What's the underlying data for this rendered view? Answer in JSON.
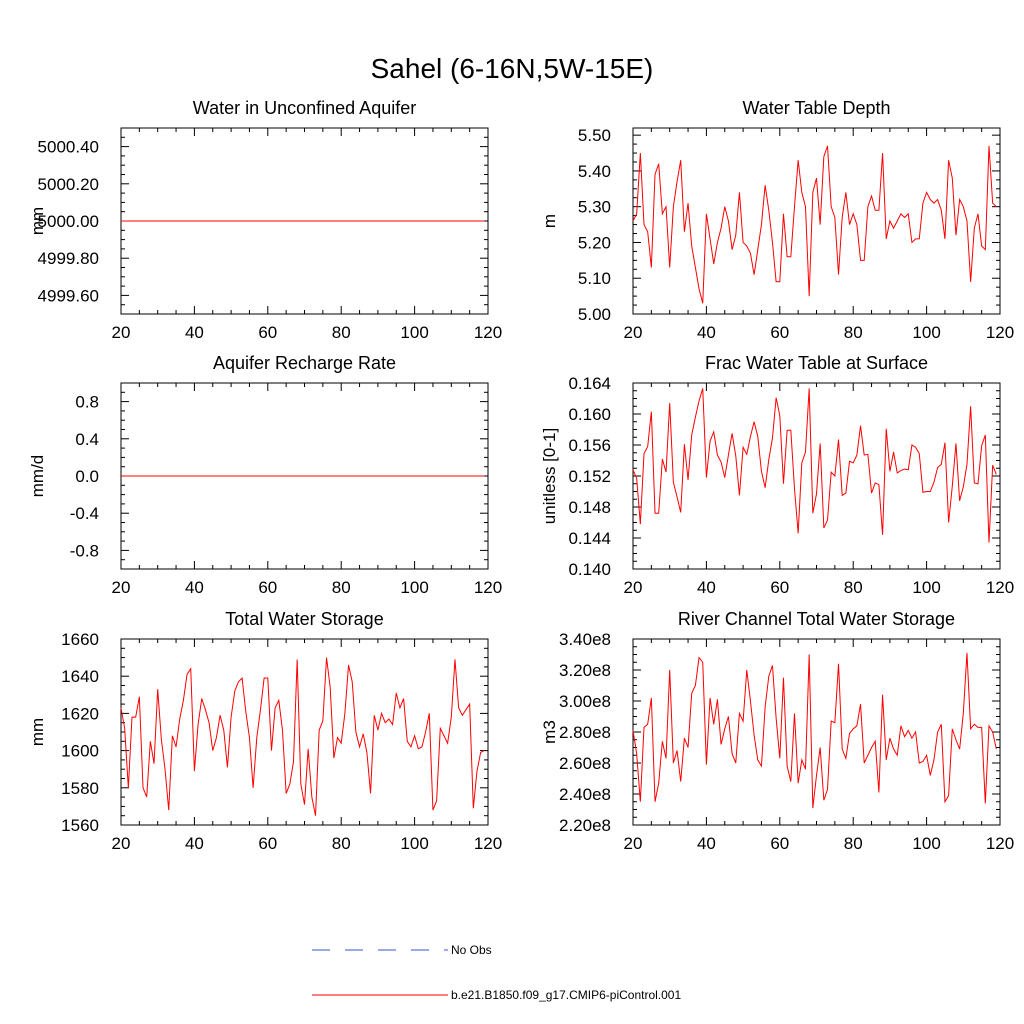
{
  "figure_title": "Sahel (6-16N,5W-15E)",
  "colors": {
    "model": "#ff0000",
    "obs": "#3355cc",
    "axis": "#000000"
  },
  "legend": [
    {
      "label": "No Obs",
      "color": "#3355cc",
      "style": "dashed"
    },
    {
      "label": "b.e21.B1850.f09_g17.CMIP6-piControl.001",
      "color": "#ff0000",
      "style": "solid"
    }
  ],
  "chart_data": [
    {
      "type": "line",
      "title": "Water in Unconfined Aquifer",
      "ylabel": "mm",
      "xlim": [
        20,
        120
      ],
      "ylim": [
        4999.5,
        5000.5
      ],
      "xticks": [
        20,
        40,
        60,
        80,
        100,
        120
      ],
      "yticks": [
        4999.6,
        4999.8,
        5000.0,
        5000.2,
        5000.4
      ],
      "ytick_labels": [
        "4999.60",
        "4999.80",
        "5000.00",
        "5000.20",
        "5000.40"
      ],
      "x_start": 20,
      "series": [
        {
          "values": [
            5000,
            5000,
            5000,
            5000,
            5000,
            5000,
            5000,
            5000,
            5000,
            5000,
            5000,
            5000,
            5000,
            5000,
            5000,
            5000,
            5000,
            5000,
            5000,
            5000,
            5000,
            5000,
            5000,
            5000,
            5000,
            5000,
            5000,
            5000,
            5000,
            5000,
            5000,
            5000,
            5000,
            5000,
            5000,
            5000,
            5000,
            5000,
            5000,
            5000,
            5000,
            5000,
            5000,
            5000,
            5000,
            5000,
            5000,
            5000,
            5000,
            5000,
            5000,
            5000,
            5000,
            5000,
            5000,
            5000,
            5000,
            5000,
            5000,
            5000,
            5000,
            5000,
            5000,
            5000,
            5000,
            5000,
            5000,
            5000,
            5000,
            5000,
            5000,
            5000,
            5000,
            5000,
            5000,
            5000,
            5000,
            5000,
            5000,
            5000,
            5000,
            5000,
            5000,
            5000,
            5000,
            5000,
            5000,
            5000,
            5000,
            5000,
            5000,
            5000,
            5000,
            5000,
            5000,
            5000,
            5000,
            5000,
            5000,
            5000
          ]
        }
      ]
    },
    {
      "type": "line",
      "title": "Water Table Depth",
      "ylabel": "m",
      "xlim": [
        20,
        120
      ],
      "ylim": [
        5.0,
        5.52
      ],
      "xticks": [
        20,
        40,
        60,
        80,
        100,
        120
      ],
      "yticks": [
        5.0,
        5.1,
        5.2,
        5.3,
        5.4,
        5.5
      ],
      "ytick_labels": [
        "5.00",
        "5.10",
        "5.20",
        "5.30",
        "5.40",
        "5.50"
      ],
      "x_start": 20,
      "series": [
        {
          "values": [
            5.26,
            5.28,
            5.45,
            5.25,
            5.23,
            5.13,
            5.39,
            5.42,
            5.28,
            5.3,
            5.13,
            5.3,
            5.37,
            5.43,
            5.23,
            5.31,
            5.19,
            5.13,
            5.07,
            5.03,
            5.28,
            5.21,
            5.14,
            5.2,
            5.24,
            5.3,
            5.26,
            5.18,
            5.22,
            5.34,
            5.2,
            5.19,
            5.17,
            5.11,
            5.18,
            5.25,
            5.36,
            5.29,
            5.2,
            5.09,
            5.09,
            5.28,
            5.16,
            5.16,
            5.3,
            5.43,
            5.34,
            5.3,
            5.05,
            5.34,
            5.38,
            5.25,
            5.44,
            5.47,
            5.3,
            5.27,
            5.11,
            5.27,
            5.34,
            5.25,
            5.28,
            5.25,
            5.15,
            5.15,
            5.3,
            5.33,
            5.29,
            5.29,
            5.45,
            5.21,
            5.26,
            5.24,
            5.26,
            5.28,
            5.27,
            5.28,
            5.2,
            5.21,
            5.21,
            5.31,
            5.34,
            5.32,
            5.31,
            5.32,
            5.29,
            5.21,
            5.43,
            5.38,
            5.22,
            5.32,
            5.3,
            5.26,
            5.09,
            5.24,
            5.28,
            5.19,
            5.18,
            5.47,
            5.31,
            5.3
          ]
        }
      ]
    },
    {
      "type": "line",
      "title": "Aquifer Recharge Rate",
      "ylabel": "mm/d",
      "xlim": [
        20,
        120
      ],
      "ylim": [
        -1.0,
        1.0
      ],
      "xticks": [
        20,
        40,
        60,
        80,
        100,
        120
      ],
      "yticks": [
        -0.8,
        -0.4,
        0.0,
        0.4,
        0.8
      ],
      "ytick_labels": [
        "-0.8",
        "-0.4",
        "0.0",
        "0.4",
        "0.8"
      ],
      "x_start": 20,
      "series": [
        {
          "values": [
            0,
            0,
            0,
            0,
            0,
            0,
            0,
            0,
            0,
            0,
            0,
            0,
            0,
            0,
            0,
            0,
            0,
            0,
            0,
            0,
            0,
            0,
            0,
            0,
            0,
            0,
            0,
            0,
            0,
            0,
            0,
            0,
            0,
            0,
            0,
            0,
            0,
            0,
            0,
            0,
            0,
            0,
            0,
            0,
            0,
            0,
            0,
            0,
            0,
            0,
            0,
            0,
            0,
            0,
            0,
            0,
            0,
            0,
            0,
            0,
            0,
            0,
            0,
            0,
            0,
            0,
            0,
            0,
            0,
            0,
            0,
            0,
            0,
            0,
            0,
            0,
            0,
            0,
            0,
            0,
            0,
            0,
            0,
            0,
            0,
            0,
            0,
            0,
            0,
            0,
            0,
            0,
            0,
            0,
            0,
            0,
            0,
            0,
            0,
            0
          ]
        }
      ]
    },
    {
      "type": "line",
      "title": "Frac Water Table at Surface",
      "ylabel": "unitless [0-1]",
      "xlim": [
        20,
        120
      ],
      "ylim": [
        0.14,
        0.164
      ],
      "xticks": [
        20,
        40,
        60,
        80,
        100,
        120
      ],
      "yticks": [
        0.14,
        0.144,
        0.148,
        0.152,
        0.156,
        0.16,
        0.164
      ],
      "ytick_labels": [
        "0.140",
        "0.144",
        "0.148",
        "0.152",
        "0.156",
        "0.160",
        "0.164"
      ],
      "x_start": 20,
      "series": [
        {
          "values": [
            0.1528,
            0.1517,
            0.1458,
            0.1549,
            0.1558,
            0.1603,
            0.1472,
            0.1472,
            0.1542,
            0.1525,
            0.1614,
            0.1512,
            0.1493,
            0.1473,
            0.1561,
            0.1515,
            0.1573,
            0.1596,
            0.1617,
            0.1633,
            0.1518,
            0.1565,
            0.1577,
            0.1547,
            0.1538,
            0.1518,
            0.1547,
            0.1575,
            0.1546,
            0.1495,
            0.1557,
            0.1548,
            0.1571,
            0.159,
            0.1571,
            0.1526,
            0.1505,
            0.1541,
            0.1569,
            0.1621,
            0.1598,
            0.151,
            0.1579,
            0.1579,
            0.1504,
            0.1446,
            0.1537,
            0.1551,
            0.1633,
            0.1472,
            0.1497,
            0.1562,
            0.1453,
            0.1463,
            0.1525,
            0.152,
            0.1567,
            0.1495,
            0.1498,
            0.1539,
            0.1537,
            0.1547,
            0.1585,
            0.1547,
            0.1548,
            0.1498,
            0.1511,
            0.1509,
            0.1444,
            0.1581,
            0.1526,
            0.1551,
            0.1524,
            0.1527,
            0.1529,
            0.1528,
            0.156,
            0.1557,
            0.1549,
            0.1499,
            0.15,
            0.15,
            0.1512,
            0.1531,
            0.1535,
            0.1563,
            0.146,
            0.1507,
            0.1562,
            0.1488,
            0.1506,
            0.1535,
            0.161,
            0.1511,
            0.151,
            0.1559,
            0.1573,
            0.1434,
            0.1534,
            0.1522
          ]
        }
      ]
    },
    {
      "type": "line",
      "title": "Total Water Storage",
      "ylabel": "mm",
      "xlim": [
        20,
        120
      ],
      "ylim": [
        1560,
        1660
      ],
      "xticks": [
        20,
        40,
        60,
        80,
        100,
        120
      ],
      "yticks": [
        1560,
        1580,
        1600,
        1620,
        1640,
        1660
      ],
      "ytick_labels": [
        "1560",
        "1580",
        "1600",
        "1620",
        "1640",
        "1660"
      ],
      "x_start": 20,
      "series": [
        {
          "values": [
            1623,
            1612,
            1580,
            1618,
            1618,
            1629,
            1580,
            1575,
            1605,
            1593,
            1633,
            1606,
            1590,
            1568,
            1608,
            1602,
            1617,
            1627,
            1641,
            1644,
            1589,
            1614,
            1628,
            1622,
            1615,
            1600,
            1607,
            1619,
            1611,
            1591,
            1618,
            1632,
            1637,
            1639,
            1621,
            1607,
            1580,
            1607,
            1622,
            1639,
            1639,
            1600,
            1623,
            1627,
            1611,
            1577,
            1582,
            1594,
            1649,
            1582,
            1571,
            1601,
            1575,
            1565,
            1611,
            1616,
            1650,
            1634,
            1596,
            1607,
            1604,
            1620,
            1646,
            1637,
            1610,
            1602,
            1609,
            1599,
            1577,
            1619,
            1611,
            1620,
            1615,
            1617,
            1614,
            1631,
            1623,
            1628,
            1605,
            1602,
            1608,
            1601,
            1602,
            1610,
            1620,
            1568,
            1573,
            1612,
            1608,
            1604,
            1618,
            1649,
            1623,
            1619,
            1622,
            1625,
            1569,
            1589,
            1599,
            1600
          ]
        }
      ]
    },
    {
      "type": "line",
      "title": "River Channel Total Water Storage",
      "ylabel": "m3",
      "xlim": [
        20,
        120
      ],
      "ylim": [
        220000000,
        340000000
      ],
      "xticks": [
        20,
        40,
        60,
        80,
        100,
        120
      ],
      "yticks": [
        220000000,
        240000000,
        260000000,
        280000000,
        300000000,
        320000000,
        340000000
      ],
      "ytick_labels": [
        "2.20e8",
        "2.40e8",
        "2.60e8",
        "2.80e8",
        "3.00e8",
        "3.20e8",
        "3.40e8"
      ],
      "x_start": 20,
      "series": [
        {
          "values": [
            281000000,
            266000000,
            235000000,
            283000000,
            285000000,
            302000000,
            235000000,
            247000000,
            274000000,
            263000000,
            320000000,
            260000000,
            268000000,
            248000000,
            276000000,
            270000000,
            305000000,
            310000000,
            328000000,
            325000000,
            259000000,
            302000000,
            285000000,
            301000000,
            272000000,
            282000000,
            290000000,
            266000000,
            260000000,
            292000000,
            287000000,
            320000000,
            300000000,
            278000000,
            262000000,
            258000000,
            296000000,
            316000000,
            323000000,
            289000000,
            263000000,
            315000000,
            258000000,
            248000000,
            292000000,
            247000000,
            262000000,
            256000000,
            330000000,
            231000000,
            252000000,
            270000000,
            236000000,
            243000000,
            287000000,
            286000000,
            324000000,
            269000000,
            263000000,
            279000000,
            282000000,
            284000000,
            298000000,
            260000000,
            265000000,
            270000000,
            274000000,
            241000000,
            304000000,
            262000000,
            276000000,
            269000000,
            265000000,
            284000000,
            277000000,
            281000000,
            276000000,
            280000000,
            260000000,
            261000000,
            265000000,
            252000000,
            262000000,
            280000000,
            285000000,
            235000000,
            239000000,
            282000000,
            275000000,
            269000000,
            292000000,
            331000000,
            282000000,
            285000000,
            283000000,
            283000000,
            234000000,
            284000000,
            280000000,
            269000000
          ]
        }
      ]
    }
  ]
}
